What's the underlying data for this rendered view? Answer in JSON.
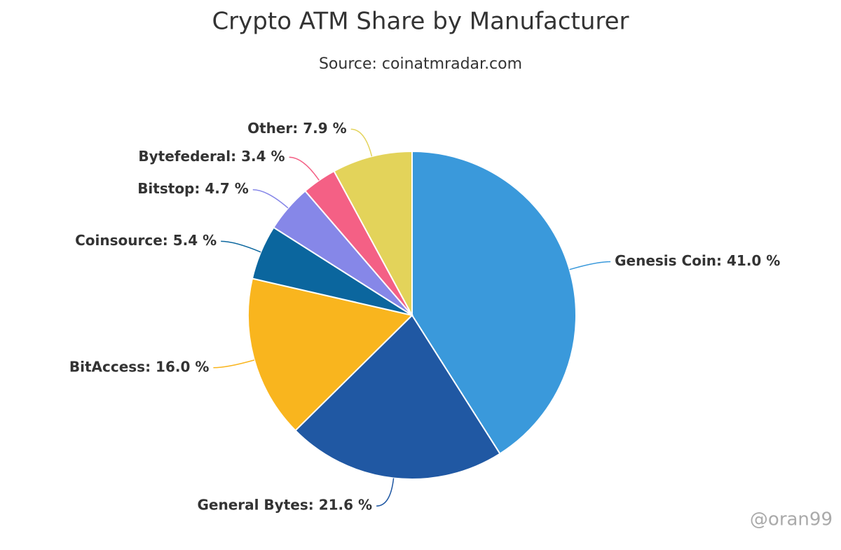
{
  "chart_data": {
    "type": "pie",
    "title": "Crypto ATM Share by Manufacturer",
    "subtitle": "Source: coinatmradar.com",
    "values": [
      41.0,
      21.6,
      16.0,
      5.4,
      4.7,
      3.4,
      7.9
    ],
    "value_labels": [
      "Genesis Coin: 41.0 %",
      "General Bytes: 21.6 %",
      "BitAccess: 16.0 %",
      "Coinsource: 5.4 %",
      "Bitstop: 4.7 %",
      "Bytefederal: 3.4 %",
      "Other: 7.9 %"
    ],
    "colors": [
      "#3a99db",
      "#2058a3",
      "#f9b51e",
      "#0b669e",
      "#8687e8",
      "#f46085",
      "#e3d35a"
    ],
    "watermark": "@oran99"
  }
}
